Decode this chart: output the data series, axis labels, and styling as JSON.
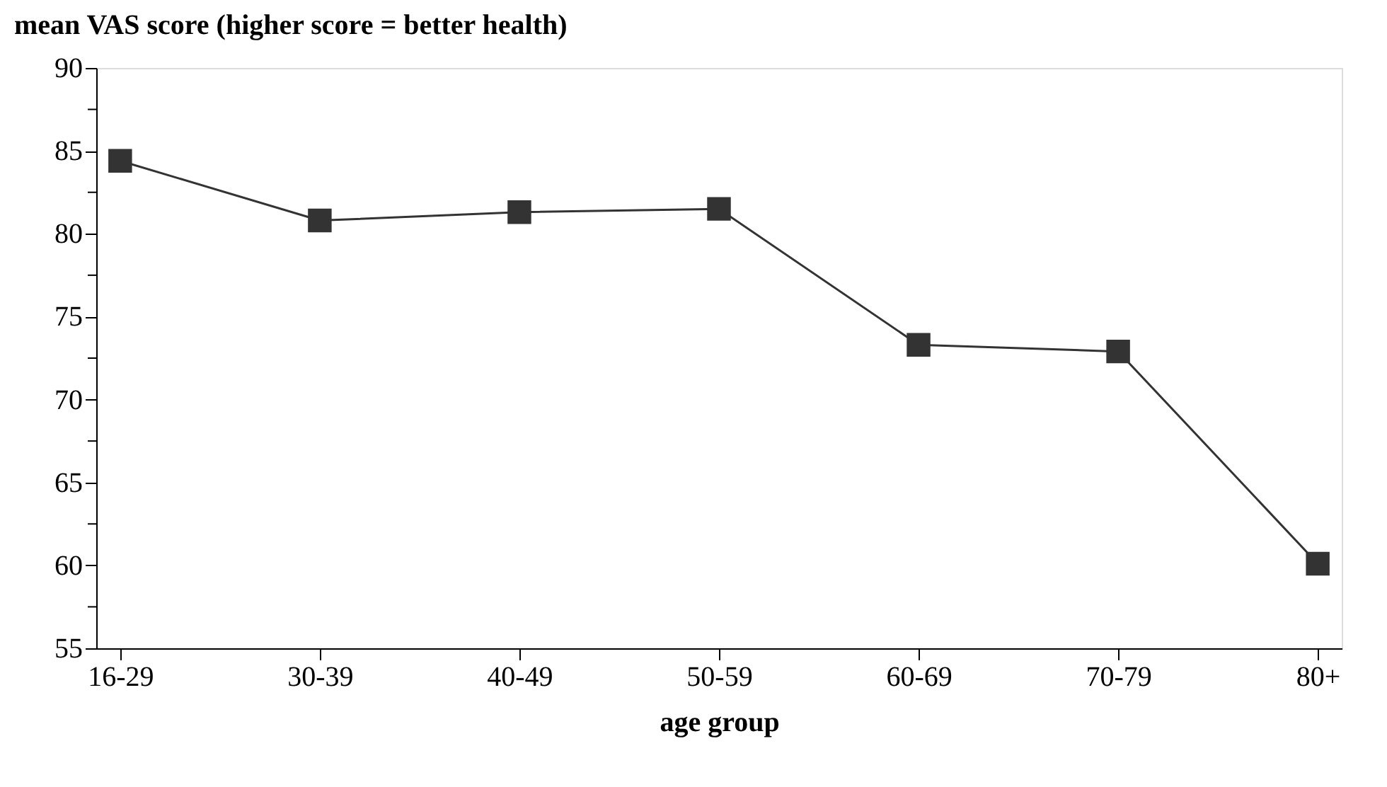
{
  "chart_data": {
    "type": "line",
    "title": "mean VAS score (higher score = better health)",
    "xlabel": "age group",
    "categories": [
      "16-29",
      "30-39",
      "40-49",
      "50-59",
      "60-69",
      "70-79",
      "80+"
    ],
    "series": [
      {
        "color": "#333333",
        "values": [
          84.4,
          80.8,
          81.3,
          81.5,
          73.3,
          72.9,
          60.1
        ]
      }
    ],
    "ylim": [
      55,
      90
    ],
    "yticks": [
      55,
      {
        "value": 57.5,
        "label": null
      },
      60,
      {
        "value": 62.5,
        "label": null
      },
      65,
      {
        "value": 67.5,
        "label": null
      },
      70,
      {
        "value": 72.5,
        "label": null
      },
      75,
      {
        "value": 77.5,
        "label": null
      },
      80,
      {
        "value": 82.5,
        "label": null
      },
      85,
      {
        "value": 87.5,
        "label": null
      },
      90
    ],
    "grid": false,
    "marker": "square",
    "line_style": "solid"
  }
}
